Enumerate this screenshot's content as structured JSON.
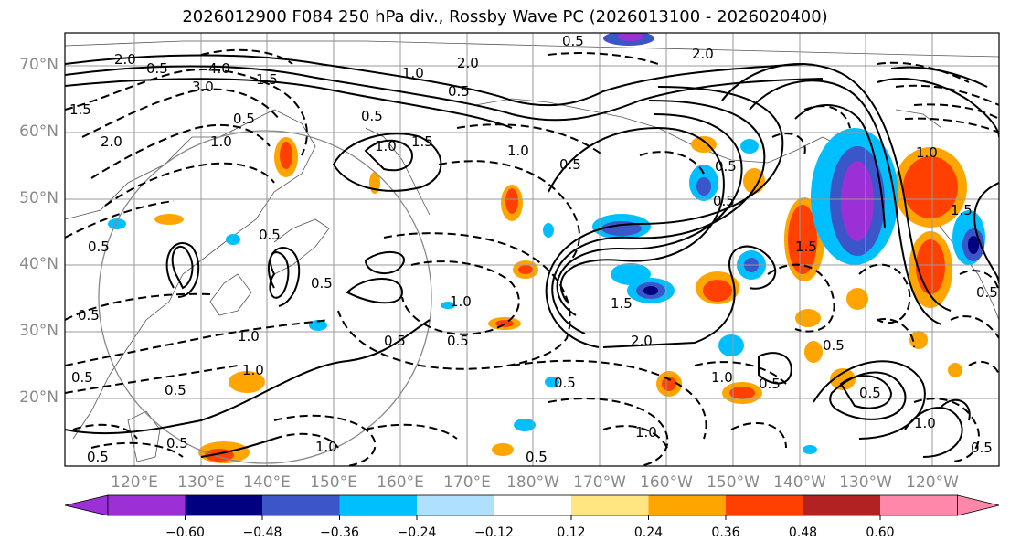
{
  "title": "2026012900 F084 250 hPa div., Rossby Wave PC (2026013100 - 2026020400)",
  "lat_labels": [
    "70°N",
    "60°N",
    "50°N",
    "40°N",
    "30°N",
    "20°N"
  ],
  "lon_labels": [
    "120°E",
    "130°E",
    "140°E",
    "150°E",
    "160°E",
    "170°E",
    "180°W",
    "170°W",
    "160°W",
    "150°W",
    "140°W",
    "130°W",
    "120°W"
  ],
  "colorbar": {
    "colors": [
      "#9b30d6",
      "#000080",
      "#3a56c8",
      "#00bfff",
      "#b0e0ff",
      "#ffffff",
      "#ffe680",
      "#ffa500",
      "#ff4000",
      "#b22222",
      "#ff88aa"
    ],
    "tick_labels": [
      "−0.60",
      "−0.48",
      "−0.36",
      "−0.24",
      "−0.12",
      "0.12",
      "0.24",
      "0.36",
      "0.48",
      "0.60"
    ]
  },
  "contour_labels": [
    "2.0",
    "0.5",
    "4.0",
    "3.0",
    "1.5",
    "0.5",
    "2.0",
    "1.0",
    "0.5",
    "0.5",
    "1.0",
    "2.0",
    "0.5",
    "1.5",
    "2.0",
    "1.0",
    "0.5",
    "1.0",
    "1.5",
    "0.5",
    "1.0",
    "0.5",
    "0.5",
    "0.5",
    "0.5",
    "1.0",
    "1.5",
    "0.5",
    "1.0",
    "0.5",
    "0.5",
    "2.0",
    "1.5",
    "0.5",
    "1.0",
    "0.5",
    "1.0",
    "1.5",
    "0.5",
    "0.5",
    "0.5",
    "0.5",
    "0.5",
    "1.0",
    "1.0",
    "0.5",
    "0.5",
    "1.0",
    "0.5",
    "0.5"
  ],
  "icons": {
    "arrow_left": "colorbar-min-arrow",
    "arrow_right": "colorbar-max-arrow"
  }
}
